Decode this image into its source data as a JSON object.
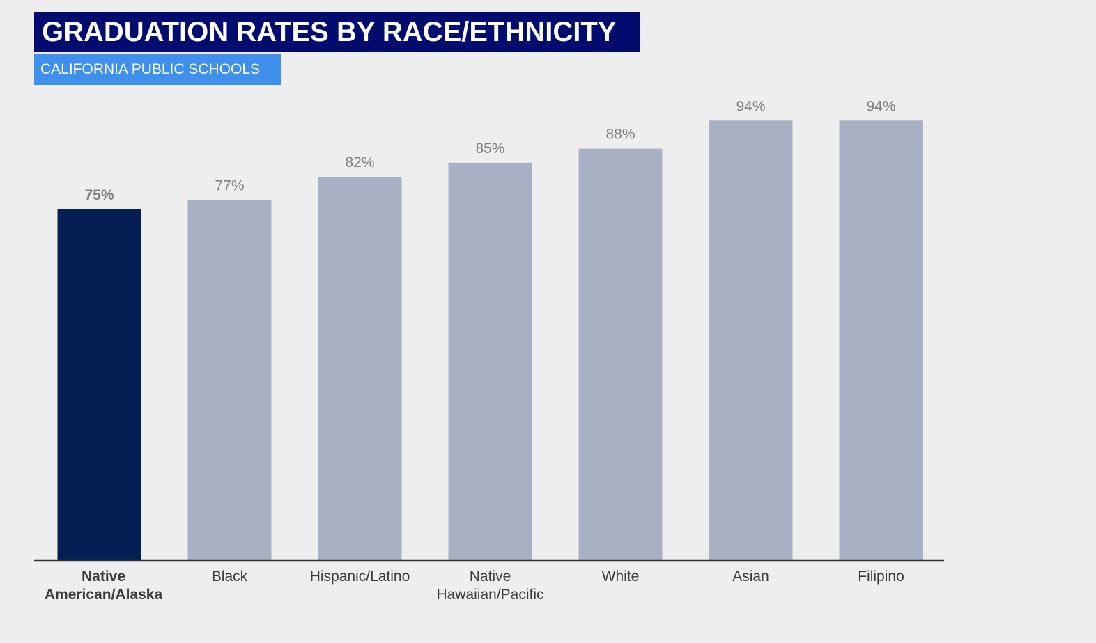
{
  "header": {
    "title": "GRADUATION RATES BY RACE/ETHNICITY",
    "subtitle": "CALIFORNIA PUBLIC SCHOOLS"
  },
  "colors": {
    "title_bg": "#020b6e",
    "subtitle_bg": "#3f8fec",
    "highlight_bar": "#061f52",
    "bar": "#a8b0c3",
    "value_label": "#808080",
    "category_label": "#3a3a3a",
    "axis": "#333333",
    "background": "#eeeeee"
  },
  "chart_data": {
    "type": "bar",
    "categories": [
      [
        "Native",
        "American/Alaska"
      ],
      [
        "Black"
      ],
      [
        "Hispanic/Latino"
      ],
      [
        "Native",
        "Hawaiian/Pacific"
      ],
      [
        "White"
      ],
      [
        "Asian"
      ],
      [
        "Filipino"
      ]
    ],
    "values": [
      75,
      77,
      82,
      85,
      88,
      94,
      94
    ],
    "value_labels": [
      "75%",
      "77%",
      "82%",
      "85%",
      "88%",
      "94%",
      "94%"
    ],
    "highlight_index": 0,
    "ylim": [
      0,
      100
    ],
    "grid": false,
    "legend": "none"
  }
}
